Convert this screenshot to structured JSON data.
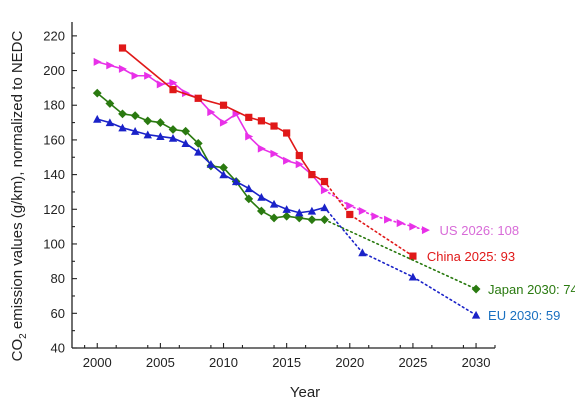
{
  "chart_data": {
    "type": "line",
    "xlabel": "Year",
    "ylabel_main": "CO",
    "ylabel_sub": "2",
    "ylabel_rest": " emission values (g/km), normalized to NEDC",
    "xlim": [
      1998,
      2031.5
    ],
    "ylim": [
      40,
      228
    ],
    "xticks": [
      2000,
      2005,
      2010,
      2015,
      2020,
      2025,
      2030
    ],
    "yticks": [
      40,
      60,
      80,
      100,
      120,
      140,
      160,
      180,
      200,
      220
    ],
    "grid": false,
    "series": [
      {
        "name": "US",
        "color": "#e830e8",
        "marker": "triangle-right",
        "x": [
          2000,
          2001,
          2002,
          2003,
          2004,
          2005,
          2006,
          2007,
          2008,
          2009,
          2010,
          2011,
          2012,
          2013,
          2014,
          2015,
          2016,
          2017,
          2018
        ],
        "y": [
          205,
          203,
          201,
          197,
          197,
          192,
          193,
          187,
          184,
          176,
          170,
          175,
          162,
          155,
          152,
          148,
          146,
          140,
          131
        ],
        "projection": {
          "x": [
            2020,
            2021,
            2022,
            2023,
            2024,
            2025,
            2026
          ],
          "y": [
            122,
            119,
            116,
            114,
            112,
            110,
            108
          ]
        },
        "target_label": "US 2026: 108"
      },
      {
        "name": "China",
        "color": "#e01818",
        "marker": "square",
        "x": [
          2002,
          2006,
          2008,
          2010,
          2012,
          2013,
          2014,
          2015,
          2016,
          2017,
          2018
        ],
        "y": [
          213,
          189,
          184,
          180,
          173,
          171,
          168,
          164,
          151,
          140,
          136
        ],
        "projection": {
          "x": [
            2020,
            2025
          ],
          "y": [
            117,
            93
          ]
        },
        "target_label": "China 2025: 93"
      },
      {
        "name": "Japan",
        "color": "#2a7a10",
        "marker": "diamond",
        "x": [
          2000,
          2001,
          2002,
          2003,
          2004,
          2005,
          2006,
          2007,
          2008,
          2009,
          2010,
          2011,
          2012,
          2013,
          2014,
          2015,
          2016,
          2017,
          2018
        ],
        "y": [
          187,
          181,
          175,
          174,
          171,
          170,
          166,
          165,
          158,
          145,
          144,
          136,
          126,
          119,
          115,
          116,
          115,
          114,
          114
        ],
        "projection": {
          "x": [
            2030
          ],
          "y": [
            74
          ]
        },
        "target_label": "Japan 2030: 74"
      },
      {
        "name": "EU",
        "color": "#1a22c8",
        "marker": "triangle-up",
        "x": [
          2000,
          2001,
          2002,
          2003,
          2004,
          2005,
          2006,
          2007,
          2008,
          2009,
          2010,
          2011,
          2012,
          2013,
          2014,
          2015,
          2016,
          2017,
          2018
        ],
        "y": [
          172,
          170,
          167,
          165,
          163,
          162,
          161,
          158,
          153,
          146,
          140,
          136,
          132,
          127,
          123,
          120,
          118,
          119,
          121
        ],
        "projection": {
          "x": [
            2021,
            2025,
            2030
          ],
          "y": [
            95,
            81,
            59
          ]
        },
        "target_label": "EU 2030: 59"
      }
    ],
    "target_label_colors": {
      "US": "#d86bd8",
      "China": "#e01818",
      "Japan": "#2a7a10",
      "EU": "#1a70c0"
    }
  }
}
